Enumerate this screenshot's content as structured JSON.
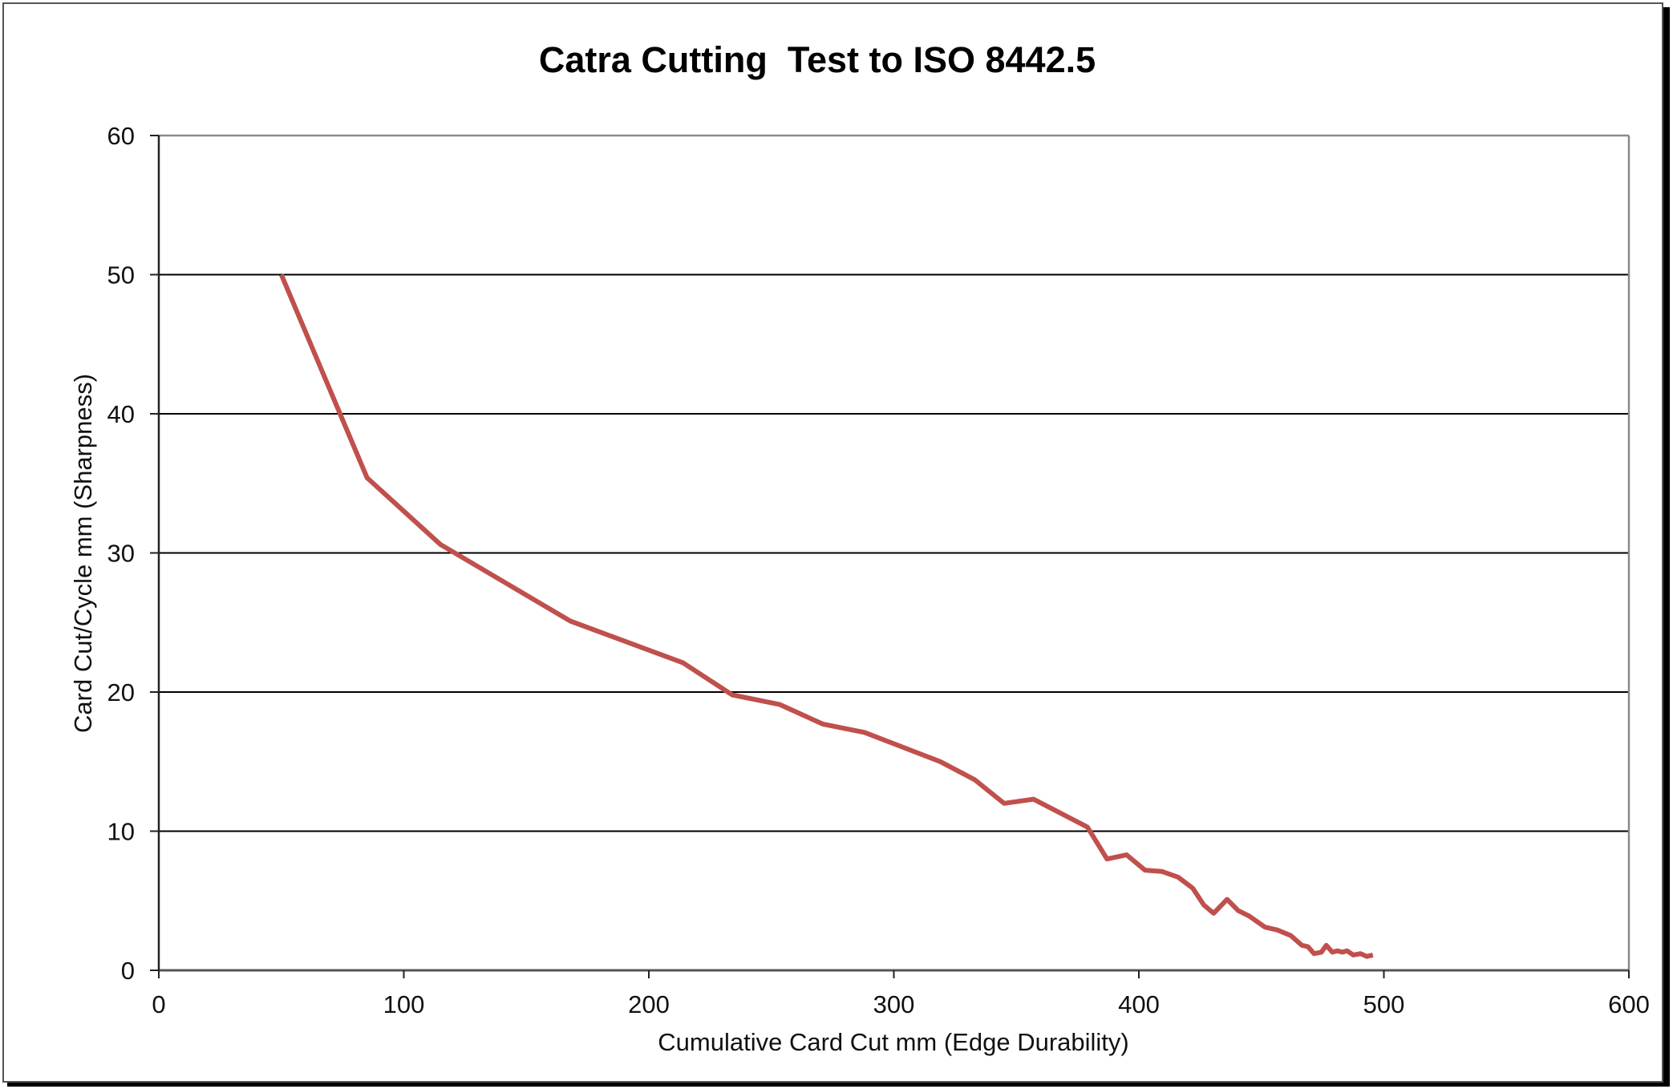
{
  "chart_data": {
    "type": "line",
    "title": "Catra Cutting  Test to ISO 8442.5",
    "xlabel": "Cumulative Card Cut mm (Edge Durability)",
    "ylabel": "Card Cut/Cycle mm (Sharpness)",
    "xlim": [
      0,
      600
    ],
    "ylim": [
      0,
      60
    ],
    "x_ticks": [
      0,
      100,
      200,
      300,
      400,
      500,
      600
    ],
    "y_ticks": [
      0,
      10,
      20,
      30,
      40,
      50,
      60
    ],
    "x_tick_labels": [
      "0",
      "100",
      "200",
      "300",
      "400",
      "500",
      "600"
    ],
    "y_tick_labels": [
      "0",
      "10",
      "20",
      "30",
      "40",
      "50",
      "60"
    ],
    "grid": "horizontal major gridlines",
    "legend": "none",
    "series": [
      {
        "name": "Sharpness",
        "color": "#C0504D",
        "x": [
          50,
          85,
          115,
          168,
          214,
          234,
          253.5,
          271,
          288,
          319,
          333,
          345,
          357,
          379,
          387,
          395,
          402.5,
          409.5,
          416,
          422,
          426.5,
          430.5,
          436,
          440.5,
          445,
          451.5,
          456.5,
          462,
          466.5,
          469,
          471.5,
          474.5,
          476.5,
          479,
          481,
          483,
          485,
          487.5,
          490.5,
          493,
          495.5
        ],
        "y": [
          50,
          35.4,
          30.6,
          25.1,
          22.1,
          19.8,
          19.1,
          17.7,
          17.1,
          15.0,
          13.7,
          12.0,
          12.3,
          10.3,
          8.0,
          8.3,
          7.2,
          7.1,
          6.7,
          5.9,
          4.7,
          4.1,
          5.1,
          4.3,
          3.9,
          3.1,
          2.9,
          2.5,
          1.8,
          1.7,
          1.2,
          1.3,
          1.8,
          1.3,
          1.4,
          1.3,
          1.4,
          1.1,
          1.2,
          1.0,
          1.1
        ]
      }
    ]
  }
}
